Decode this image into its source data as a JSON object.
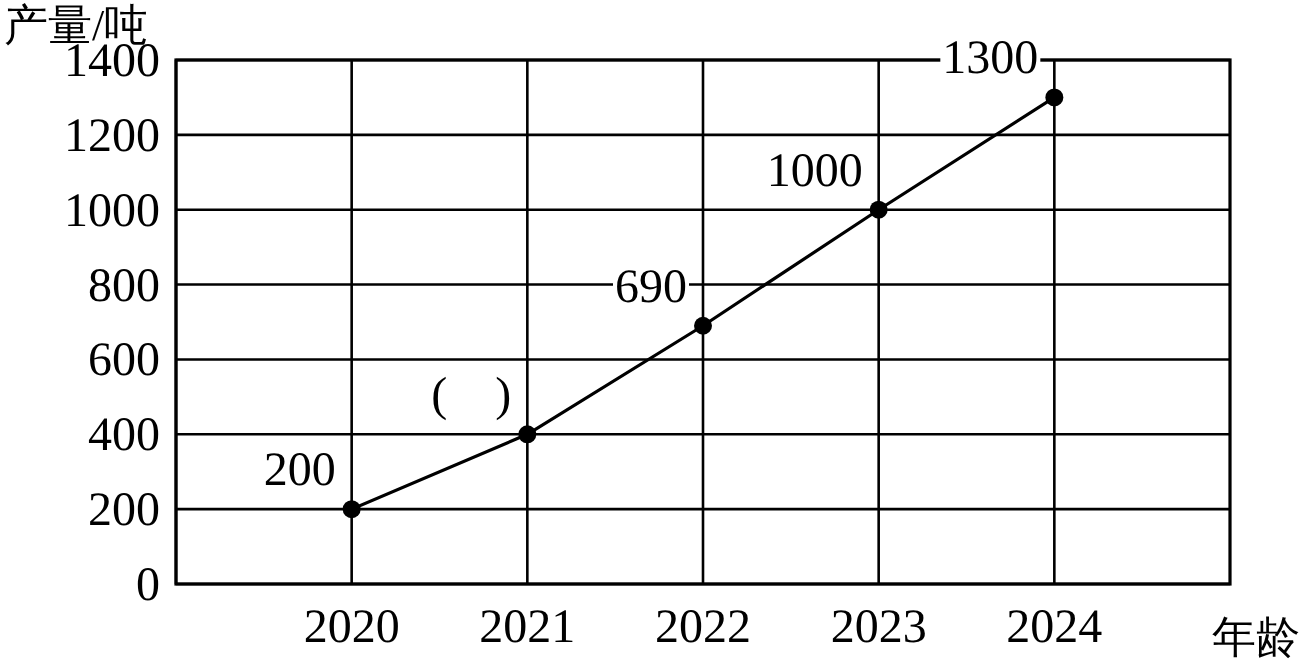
{
  "chart_data": {
    "type": "line",
    "xlabel": "年龄",
    "ylabel": "产量/吨",
    "x": [
      2020,
      2021,
      2022,
      2023,
      2024
    ],
    "values": [
      200,
      400,
      690,
      1000,
      1300
    ],
    "value_labels": [
      "200",
      "(    )",
      "690",
      "1000",
      "1300"
    ],
    "color": "#000000",
    "marker": "circle",
    "line_style": "solid",
    "grid": true,
    "xlim": [
      2019,
      2025
    ],
    "xticks": [
      {
        "value": 2019,
        "label": null
      },
      2020,
      2021,
      2022,
      2023,
      2024
    ],
    "ylim": [
      0,
      1400
    ],
    "yticks": [
      0,
      200,
      400,
      600,
      800,
      1000,
      1200,
      1400
    ]
  }
}
